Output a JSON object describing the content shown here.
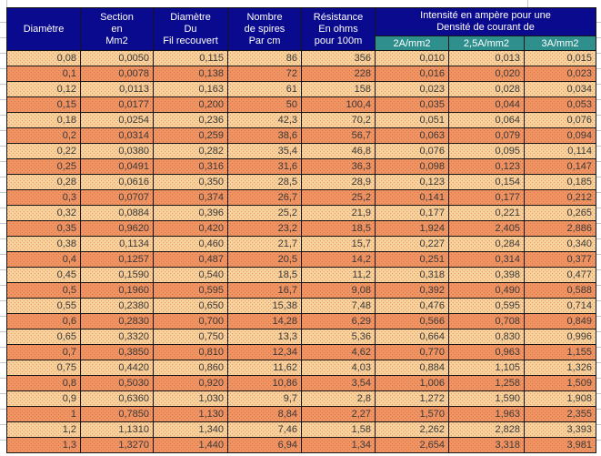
{
  "table": {
    "header": {
      "diametre": [
        "Diamètre"
      ],
      "section": [
        "Section",
        "en",
        "Mm2"
      ],
      "fil": [
        "Diamètre",
        "Du",
        "Fil recouvert"
      ],
      "spires": [
        "Nombre",
        "de spires",
        "Par cm"
      ],
      "resistance": [
        "Résistance",
        "En ohms",
        "pour 100m"
      ],
      "intensite": [
        "Intensité en ampère pour une",
        "Densité de courant de"
      ],
      "densites": [
        "2A/mm2",
        "2,5A/mm2",
        "3A/mm2"
      ]
    },
    "rows": [
      [
        "0,08",
        "0,0050",
        "0,115",
        "86",
        "356",
        "0,010",
        "0,013",
        "0,015"
      ],
      [
        "0,1",
        "0,0078",
        "0,138",
        "72",
        "228",
        "0,016",
        "0,020",
        "0,023"
      ],
      [
        "0,12",
        "0,0113",
        "0,163",
        "61",
        "158",
        "0,023",
        "0,028",
        "0,034"
      ],
      [
        "0,15",
        "0,0177",
        "0,200",
        "50",
        "100,4",
        "0,035",
        "0,044",
        "0,053"
      ],
      [
        "0,18",
        "0,0254",
        "0,236",
        "42,3",
        "70,2",
        "0,051",
        "0,064",
        "0,076"
      ],
      [
        "0,2",
        "0,0314",
        "0,259",
        "38,6",
        "56,7",
        "0,063",
        "0,079",
        "0,094"
      ],
      [
        "0,22",
        "0,0380",
        "0,282",
        "35,4",
        "46,8",
        "0,076",
        "0,095",
        "0,114"
      ],
      [
        "0,25",
        "0,0491",
        "0,316",
        "31,6",
        "36,3",
        "0,098",
        "0,123",
        "0,147"
      ],
      [
        "0,28",
        "0,0616",
        "0,350",
        "28,5",
        "28,9",
        "0,123",
        "0,154",
        "0,185"
      ],
      [
        "0,3",
        "0,0707",
        "0,374",
        "26,7",
        "25,2",
        "0,141",
        "0,177",
        "0,212"
      ],
      [
        "0,32",
        "0,0884",
        "0,396",
        "25,2",
        "21,9",
        "0,177",
        "0,221",
        "0,265"
      ],
      [
        "0,35",
        "0,9620",
        "0,420",
        "23,2",
        "18,5",
        "1,924",
        "2,405",
        "2,886"
      ],
      [
        "0,38",
        "0,1134",
        "0,460",
        "21,7",
        "15,7",
        "0,227",
        "0,284",
        "0,340"
      ],
      [
        "0,4",
        "0,1257",
        "0,487",
        "20,5",
        "14,2",
        "0,251",
        "0,314",
        "0,377"
      ],
      [
        "0,45",
        "0,1590",
        "0,540",
        "18,5",
        "11,2",
        "0,318",
        "0,398",
        "0,477"
      ],
      [
        "0,5",
        "0,1960",
        "0,595",
        "16,7",
        "9,08",
        "0,392",
        "0,490",
        "0,588"
      ],
      [
        "0,55",
        "0,2380",
        "0,650",
        "15,38",
        "7,48",
        "0,476",
        "0,595",
        "0,714"
      ],
      [
        "0,6",
        "0,2830",
        "0,700",
        "14,28",
        "6,29",
        "0,566",
        "0,708",
        "0,849"
      ],
      [
        "0,65",
        "0,3320",
        "0,750",
        "13,3",
        "5,36",
        "0,664",
        "0,830",
        "0,996"
      ],
      [
        "0,7",
        "0,3850",
        "0,810",
        "12,34",
        "4,62",
        "0,770",
        "0,963",
        "1,155"
      ],
      [
        "0,75",
        "0,4420",
        "0,860",
        "11,62",
        "4,03",
        "0,884",
        "1,105",
        "1,326"
      ],
      [
        "0,8",
        "0,5030",
        "0,920",
        "10,86",
        "3,54",
        "1,006",
        "1,258",
        "1,509"
      ],
      [
        "0,9",
        "0,6360",
        "1,030",
        "9,7",
        "2,8",
        "1,272",
        "1,590",
        "1,908"
      ],
      [
        "1",
        "0,7850",
        "1,130",
        "8,84",
        "2,27",
        "1,570",
        "1,963",
        "2,355"
      ],
      [
        "1,2",
        "1,1310",
        "1,340",
        "7,46",
        "1,58",
        "2,262",
        "2,828",
        "3,393"
      ],
      [
        "1,3",
        "1,3270",
        "1,440",
        "6,94",
        "1,34",
        "2,654",
        "3,318",
        "3,981"
      ]
    ]
  },
  "colors": {
    "header_bg": "#0a0a8e",
    "subheader_bg": "#2e8f8d",
    "row_light_bg": "#f9d9a6",
    "row_light_dot": "#eda165",
    "row_dark_bg": "#f2996b",
    "row_dark_dot": "#e2773f",
    "cell_border": "#161616",
    "margin_gridline": "#c6c6c6",
    "header_text": "#ffffff",
    "cell_text": "#383838"
  }
}
